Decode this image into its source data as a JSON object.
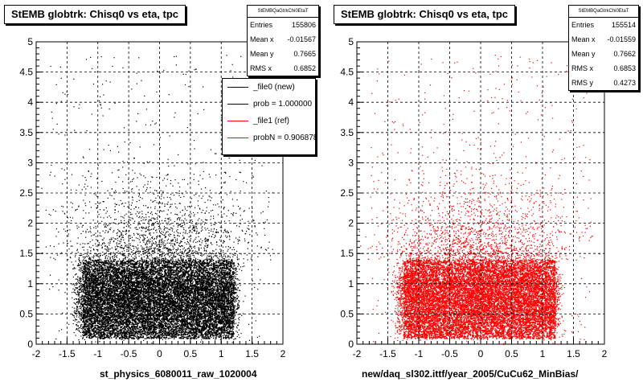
{
  "chart_data": [
    {
      "type": "scatter",
      "title": "StEMB globtrk: Chisq0 vs eta, tpc",
      "xlabel": "st_physics_6080011_raw_1020004",
      "ylabel": "",
      "xlim": [
        -2,
        2
      ],
      "ylim": [
        0,
        5
      ],
      "xticks": [
        "-2",
        "-1.5",
        "-1",
        "-0.5",
        "0",
        "0.5",
        "1",
        "1.5",
        "2"
      ],
      "yticks": [
        "0",
        "0.5",
        "1",
        "1.5",
        "2",
        "2.5",
        "3",
        "3.5",
        "4",
        "4.5",
        "5"
      ],
      "grid": true,
      "marker_color": "#000000",
      "density_description_core": {
        "x_range": [
          -1.35,
          1.25
        ],
        "y_range": [
          0.05,
          1.45
        ]
      },
      "stats": {
        "name": "StEMBQaGtrkChi0EtaT",
        "rows": [
          {
            "label": "Entries",
            "value": "155806"
          },
          {
            "label": "Mean x",
            "value": "-0.01567"
          },
          {
            "label": "Mean y",
            "value": "0.7665"
          },
          {
            "label": "RMS x",
            "value": "0.6852"
          }
        ]
      },
      "legend": {
        "placement": "top-right",
        "entries": [
          {
            "label": "_file0 (new)",
            "color": "#000000"
          },
          {
            "label": "prob = 1.000000",
            "color": "#000000"
          },
          {
            "label": "_file1 (ref)",
            "color": "#ff0000"
          },
          {
            "label": "probN = 0.906878",
            "color": "#ff0000"
          }
        ]
      }
    },
    {
      "type": "scatter",
      "title": "StEMB globtrk: Chisq0 vs eta, tpc",
      "xlabel": "new/daq_sl302.ittf/year_2005/CuCu62_MinBias/",
      "ylabel": "",
      "xlim": [
        -2,
        2
      ],
      "ylim": [
        0,
        5
      ],
      "xticks": [
        "-2",
        "-1.5",
        "-1",
        "-0.5",
        "0",
        "0.5",
        "1",
        "1.5",
        "2"
      ],
      "yticks": [
        "0",
        "0.5",
        "1",
        "1.5",
        "2",
        "2.5",
        "3",
        "3.5",
        "4",
        "4.5",
        "5"
      ],
      "grid": true,
      "marker_color": "#ff0000",
      "stats": {
        "name": "StEMBQaGtrkChi0EtaT",
        "rows": [
          {
            "label": "Entries",
            "value": "155514"
          },
          {
            "label": "Mean x",
            "value": "-0.01559"
          },
          {
            "label": "Mean y",
            "value": "0.7662"
          },
          {
            "label": "RMS x",
            "value": "0.6853"
          },
          {
            "label": "RMS y",
            "value": "0.4273"
          }
        ]
      }
    }
  ]
}
